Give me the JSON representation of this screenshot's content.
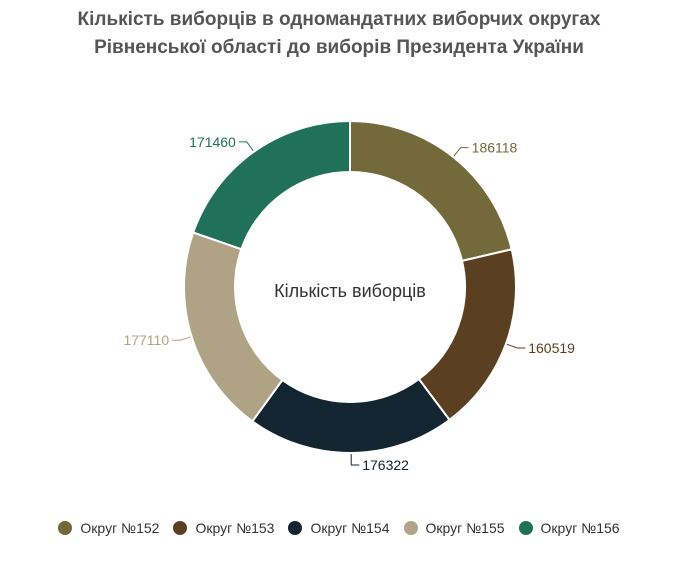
{
  "chart_data": {
    "type": "pie",
    "variant": "donut",
    "title_line1": "Кількість виборців в одномандатних виборчих округах",
    "title_line2": "Рівненської області до виборів Президента України",
    "center_label": "Кількість виборців",
    "legend_position": "bottom",
    "categories": [
      "Округ №152",
      "Округ №153",
      "Округ №154",
      "Округ №155",
      "Округ №156"
    ],
    "values": [
      186118,
      160519,
      176322,
      177110,
      171460
    ],
    "colors": [
      "#74693B",
      "#5A3F20",
      "#132530",
      "#B0A285",
      "#21705A"
    ],
    "label_colors": [
      "#74693B",
      "#5A3F20",
      "#132530",
      "#B0A285",
      "#21705A"
    ]
  }
}
